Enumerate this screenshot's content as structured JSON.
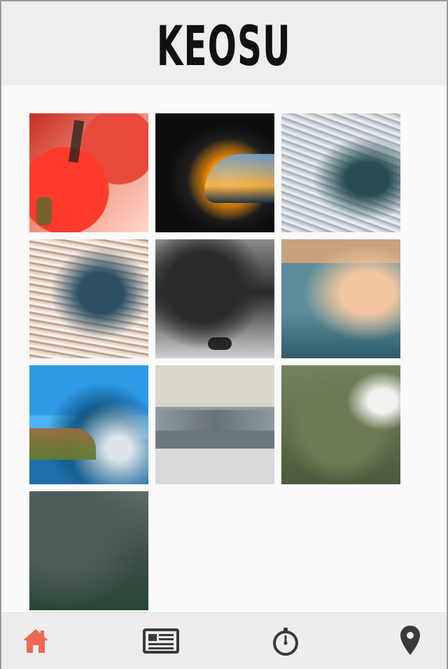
{
  "header": {
    "title": "KEOSU"
  },
  "gallery": {
    "items": [
      {
        "name": "gallery-item-1"
      },
      {
        "name": "gallery-item-2"
      },
      {
        "name": "gallery-item-3"
      },
      {
        "name": "gallery-item-4"
      },
      {
        "name": "gallery-item-5"
      },
      {
        "name": "gallery-item-6"
      },
      {
        "name": "gallery-item-7"
      },
      {
        "name": "gallery-item-8"
      },
      {
        "name": "gallery-item-9"
      },
      {
        "name": "gallery-item-10"
      }
    ]
  },
  "bottom_nav": {
    "items": [
      {
        "icon": "home-icon",
        "active": true
      },
      {
        "icon": "newspaper-icon",
        "active": false
      },
      {
        "icon": "stopwatch-icon",
        "active": false
      },
      {
        "icon": "location-pin-icon",
        "active": false
      }
    ],
    "colors": {
      "active": "#ef6a52",
      "inactive": "#3a3a3a"
    }
  }
}
